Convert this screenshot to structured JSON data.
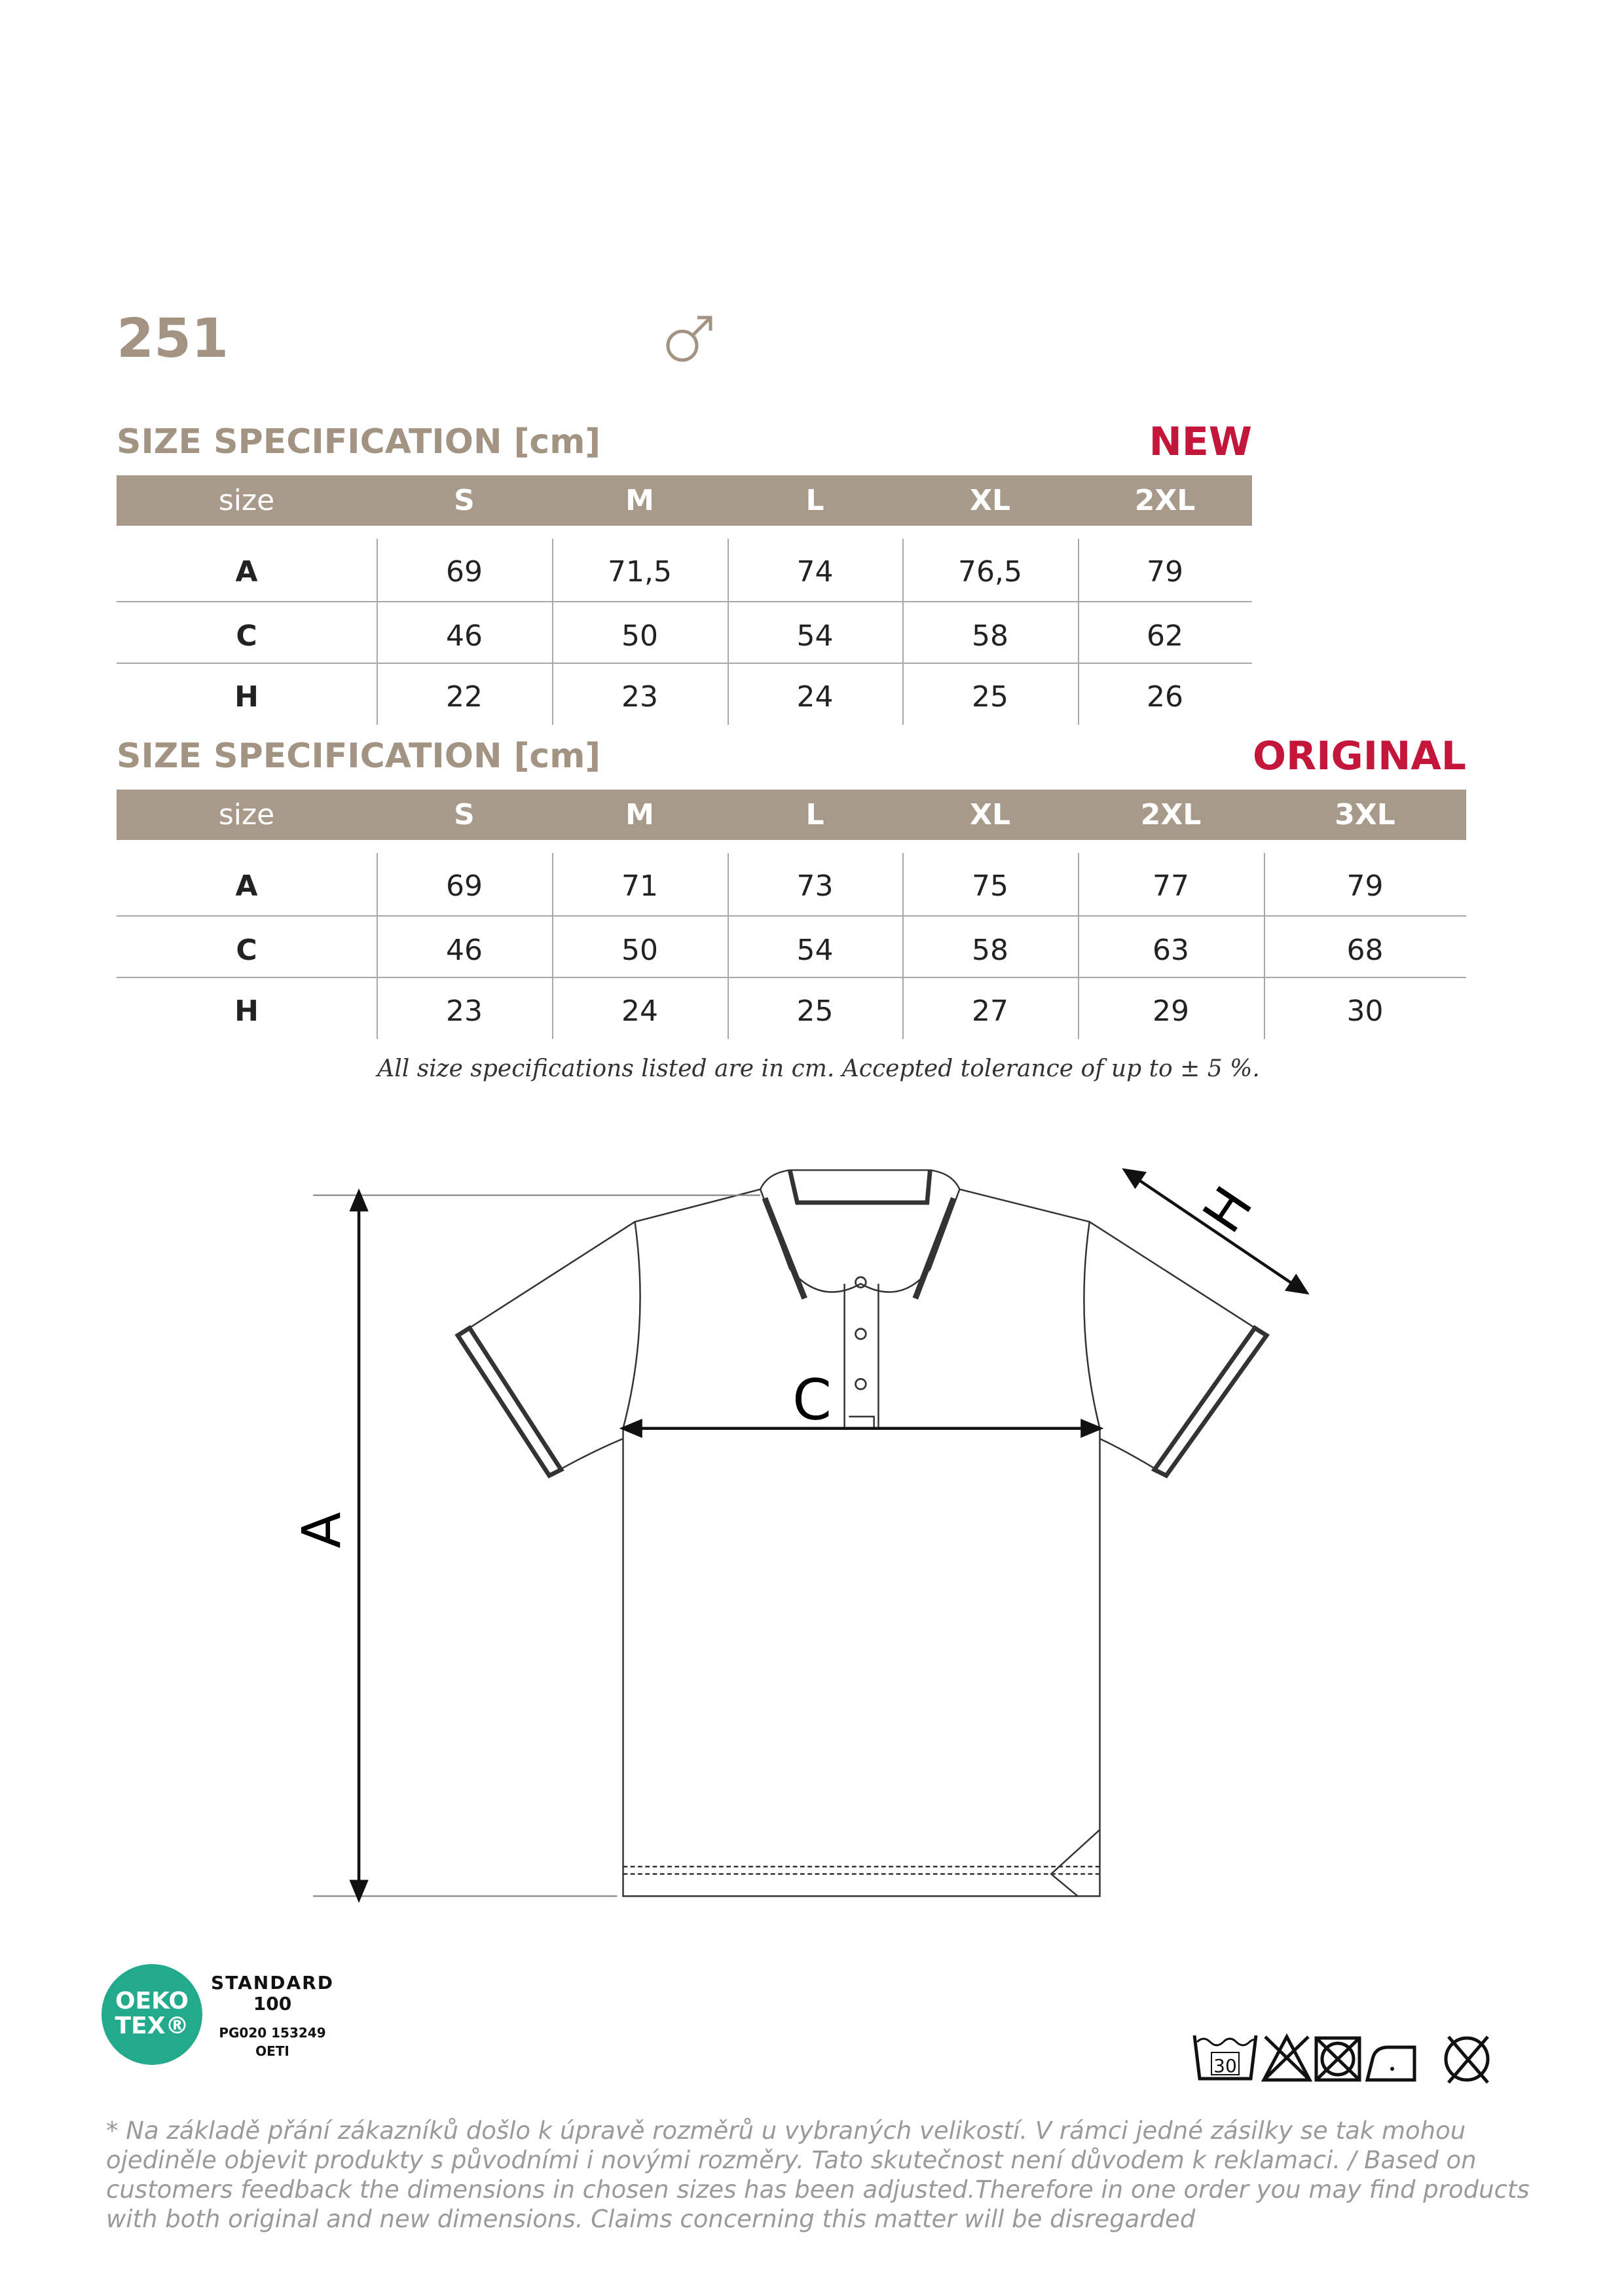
{
  "model": "251",
  "gender_icon": "male-symbol-icon",
  "colors": {
    "accent": "#a89a8b",
    "tag": "#c4163a",
    "oeko": "#23a98b"
  },
  "new_table": {
    "heading": "SIZE SPECIFICATION [cm]",
    "tag": "NEW",
    "columns": [
      "size",
      "S",
      "M",
      "L",
      "XL",
      "2XL"
    ],
    "rows": [
      [
        "A",
        "69",
        "71,5",
        "74",
        "76,5",
        "79"
      ],
      [
        "C",
        "46",
        "50",
        "54",
        "58",
        "62"
      ],
      [
        "H",
        "22",
        "23",
        "24",
        "25",
        "26"
      ]
    ]
  },
  "original_table": {
    "heading": "SIZE SPECIFICATION [cm]",
    "tag": "ORIGINAL",
    "columns": [
      "size",
      "S",
      "M",
      "L",
      "XL",
      "2XL",
      "3XL"
    ],
    "rows": [
      [
        "A",
        "69",
        "71",
        "73",
        "75",
        "77",
        "79"
      ],
      [
        "C",
        "46",
        "50",
        "54",
        "58",
        "63",
        "68"
      ],
      [
        "H",
        "23",
        "24",
        "25",
        "27",
        "29",
        "30"
      ]
    ]
  },
  "note": "All size specifications listed are in cm. Accepted tolerance of up to ± 5 %.",
  "diagram": {
    "label_a": "A",
    "label_c": "C",
    "label_h": "H"
  },
  "certification": {
    "logo_line1": "OEKO",
    "logo_line2": "TEX®",
    "standard": "STANDARD",
    "number": "100",
    "code": "PG020 153249",
    "institute": "OETI"
  },
  "care_symbols": {
    "wash_temp": "30",
    "icons": [
      "wash-30-icon",
      "no-bleach-icon",
      "no-tumble-dry-icon",
      "iron-low-icon",
      "no-dry-clean-icon"
    ]
  },
  "footer": "* Na základě přání zákazníků došlo k úpravě rozměrů u vybraných velikostí. V rámci jedné zásilky se tak mohou ojediněle objevit produkty s původními i novými rozměry. Tato skutečnost není důvodem k reklamaci. / Based on customers feedback the dimensions in chosen sizes has been adjusted.Therefore in one order you may find products with both original and new dimensions. Claims concerning this matter will be disregarded"
}
